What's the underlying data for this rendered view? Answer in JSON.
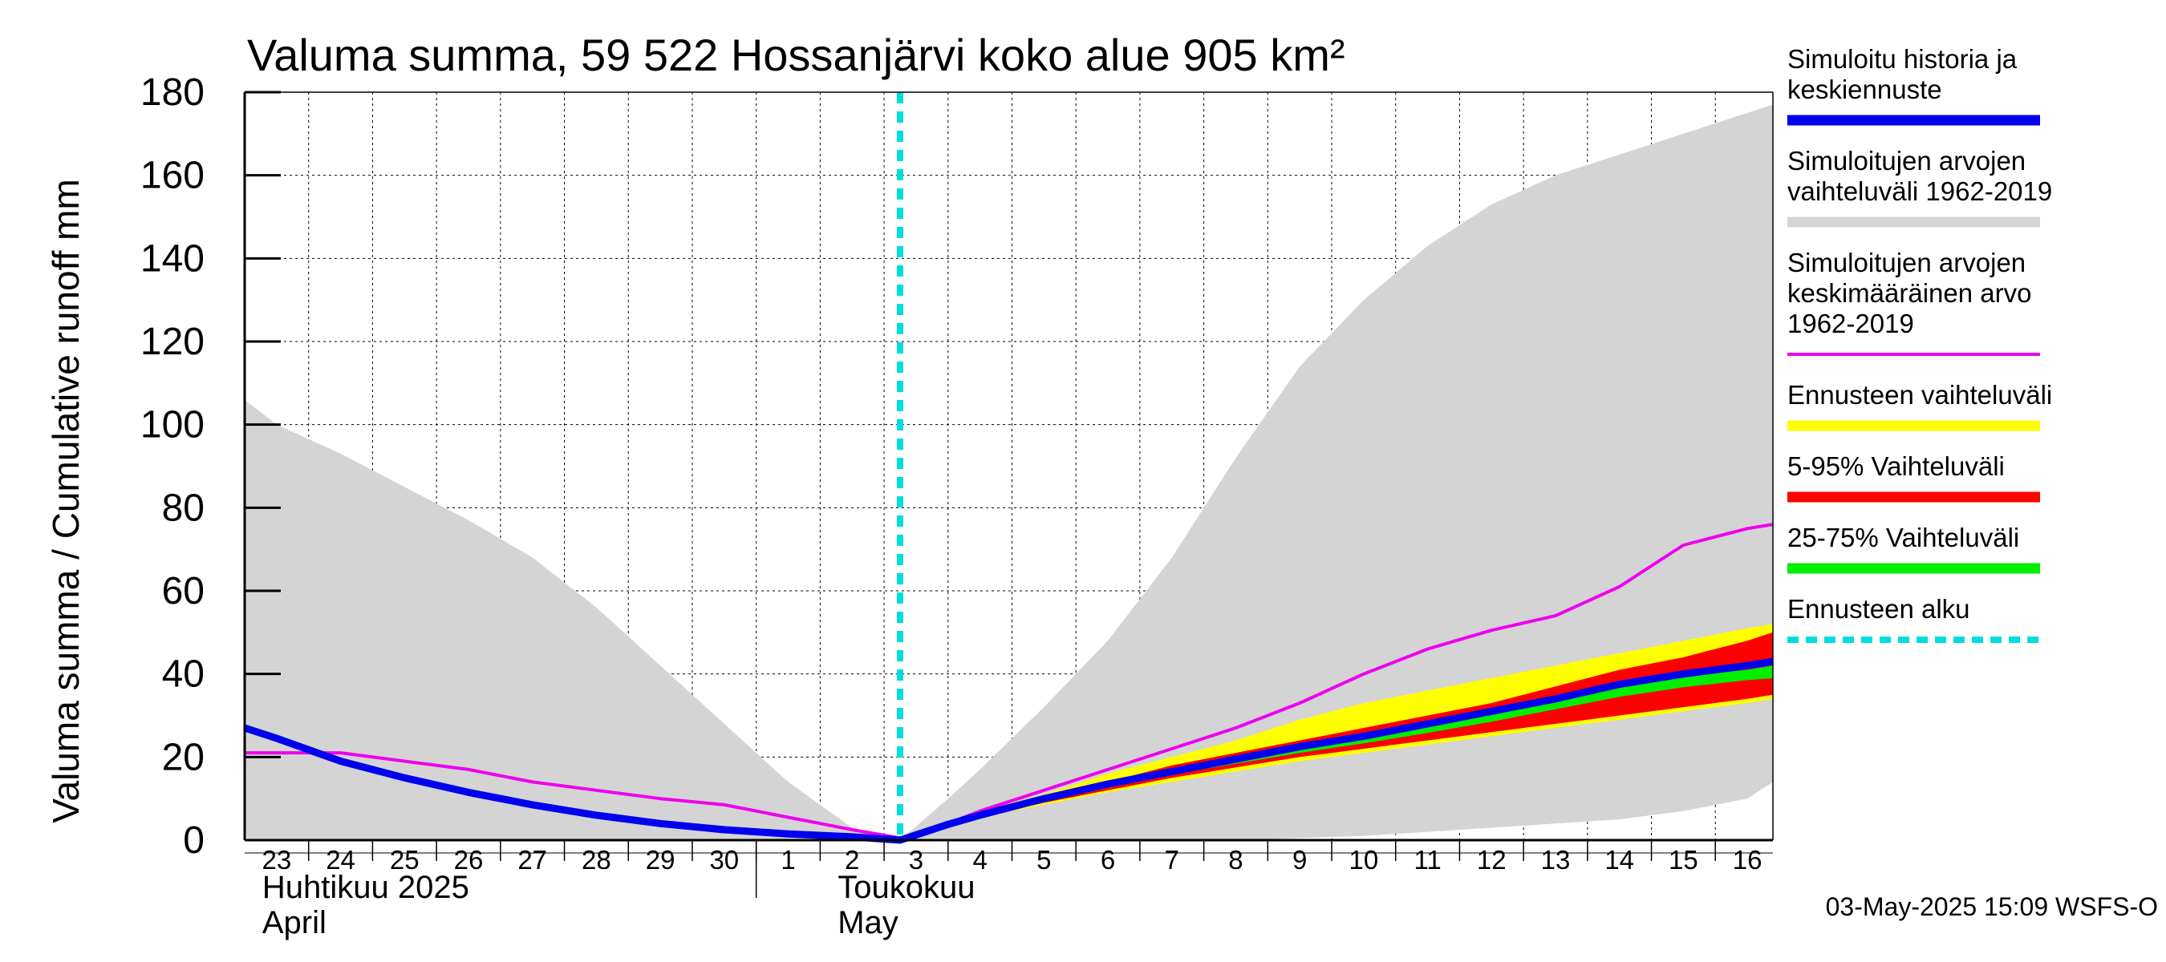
{
  "chart_data": {
    "type": "area",
    "title": "Valuma summa, 59 522 Hossanjärvi koko alue 905 km²",
    "ylabel": "Valuma summa / Cumulative runoff    mm",
    "ylim": [
      0,
      180
    ],
    "yticks": [
      0,
      20,
      40,
      60,
      80,
      100,
      120,
      140,
      160,
      180
    ],
    "xlim": [
      -0.5,
      23.4
    ],
    "x_tick_labels": [
      "23",
      "24",
      "25",
      "26",
      "27",
      "28",
      "29",
      "30",
      "1",
      "2",
      "3",
      "4",
      "5",
      "6",
      "7",
      "8",
      "9",
      "10",
      "11",
      "12",
      "13",
      "14",
      "15",
      "16"
    ],
    "month_labels": [
      {
        "x": 0,
        "line1": "Huhtikuu  2025",
        "line2": "April"
      },
      {
        "x": 9,
        "line1": "Toukokuu",
        "line2": "May"
      }
    ],
    "month_boundary_x": 7.5,
    "forecast_start_x": 9.75,
    "grid": true,
    "legend_position": "right",
    "series": [
      {
        "name": "Simuloitujen arvojen vaihteluväli 1962-2019",
        "kind": "band",
        "color": "#d4d4d4",
        "x": [
          -0.5,
          0,
          1,
          2,
          3,
          4,
          5,
          6,
          7,
          8,
          9,
          9.75,
          10.5,
          11,
          12,
          13,
          14,
          15,
          16,
          17,
          18,
          19,
          20,
          21,
          22,
          23,
          23.4
        ],
        "upper": [
          106,
          100,
          93,
          85,
          77,
          68,
          56,
          42,
          28,
          14,
          3,
          0,
          10,
          17,
          32,
          48,
          68,
          92,
          114,
          130,
          143,
          153,
          160,
          165,
          170,
          175,
          177
        ],
        "lower": [
          0,
          0,
          0,
          0,
          0,
          0,
          0,
          0,
          0,
          0,
          0,
          0,
          0,
          0,
          0,
          0,
          0,
          0,
          0.5,
          1,
          2,
          3,
          4,
          5,
          7,
          10,
          14
        ]
      },
      {
        "name": "Ennusteen vaihteluväli",
        "kind": "band",
        "color": "#ffff00",
        "x": [
          9.75,
          10.5,
          11,
          12,
          13,
          14,
          15,
          16,
          17,
          18,
          19,
          20,
          21,
          22,
          23,
          23.4
        ],
        "upper": [
          0,
          4,
          7,
          11,
          16,
          20,
          24,
          29,
          33,
          36,
          39,
          42,
          45,
          48,
          51,
          52
        ],
        "lower": [
          0,
          3.5,
          5.5,
          8.5,
          11.5,
          14,
          16.5,
          19,
          21,
          23,
          25,
          27,
          29,
          31,
          33,
          34
        ]
      },
      {
        "name": "5-95% Vaihteluväli",
        "kind": "band",
        "color": "#ff0000",
        "x": [
          9.75,
          10.5,
          11,
          12,
          13,
          14,
          15,
          16,
          17,
          18,
          19,
          20,
          21,
          22,
          23,
          23.4
        ],
        "upper": [
          0,
          3.8,
          6,
          10,
          14,
          18,
          21,
          24,
          27,
          30,
          33,
          37,
          41,
          44,
          48,
          50
        ],
        "lower": [
          0,
          3.6,
          5.6,
          9,
          12,
          15,
          17.5,
          20,
          22,
          24,
          26,
          28,
          30,
          32,
          34,
          35
        ]
      },
      {
        "name": "25-75% Vaihteluväli",
        "kind": "band",
        "color": "#00ee00",
        "x": [
          9.75,
          10.5,
          11,
          12,
          13,
          14,
          15,
          16,
          17,
          18,
          19,
          20,
          21,
          22,
          23,
          23.4
        ],
        "upper": [
          0,
          3.8,
          5.9,
          9.8,
          13.4,
          17,
          19.8,
          22.5,
          25,
          27.8,
          30.8,
          33.8,
          37,
          39.5,
          41,
          42
        ],
        "lower": [
          0,
          3.7,
          5.7,
          9.2,
          12.6,
          15.8,
          18.4,
          21,
          23.3,
          25.8,
          28.5,
          31.5,
          34.5,
          36.8,
          38.5,
          39
        ]
      },
      {
        "name": "Simuloitujen arvojen keskimääräinen arvo 1962-2019",
        "kind": "line",
        "color": "#ee00ee",
        "x": [
          -0.5,
          0,
          1,
          2,
          3,
          4,
          5,
          6,
          7,
          8,
          9,
          9.75,
          10.5,
          11,
          12,
          13,
          14,
          15,
          16,
          17,
          18,
          19,
          20,
          21,
          22,
          23,
          23.4
        ],
        "y": [
          21,
          21,
          21,
          19,
          17,
          14,
          12,
          10,
          8.5,
          5.5,
          2.5,
          0.5,
          4,
          7,
          12,
          17,
          22,
          27,
          33,
          40,
          46,
          50.5,
          54,
          61,
          71,
          75,
          76
        ]
      },
      {
        "name": "Simuloitu historia ja keskiennuste",
        "kind": "line",
        "color": "#0000ee",
        "x": [
          -0.5,
          0,
          1,
          2,
          3,
          4,
          5,
          6,
          7,
          8,
          9,
          9.75,
          10.5,
          11,
          12,
          13,
          14,
          15,
          16,
          17,
          18,
          19,
          20,
          21,
          22,
          23,
          23.4
        ],
        "y": [
          27,
          24.5,
          19,
          15,
          11.5,
          8.5,
          6,
          4,
          2.5,
          1.5,
          0.8,
          0,
          3.8,
          6,
          10,
          13.5,
          16.5,
          19.5,
          22.5,
          25,
          28,
          31,
          34,
          37.5,
          40,
          42,
          43
        ]
      },
      {
        "name": "Ennusteen alku",
        "kind": "vline",
        "color": "#00dddd",
        "x": 9.75
      }
    ],
    "legend": [
      {
        "lines": [
          "Simuloitu historia ja",
          "keskiennuste"
        ],
        "color": "#0000ee",
        "style": "solid"
      },
      {
        "lines": [
          "Simuloitujen arvojen",
          "vaihteluväli 1962-2019"
        ],
        "color": "#d4d4d4",
        "style": "solid"
      },
      {
        "lines": [
          "Simuloitujen arvojen",
          "keskimääräinen arvo",
          "   1962-2019"
        ],
        "color": "#ee00ee",
        "style": "thin"
      },
      {
        "lines": [
          "Ennusteen vaihteluväli"
        ],
        "color": "#ffff00",
        "style": "solid"
      },
      {
        "lines": [
          "5-95% Vaihteluväli"
        ],
        "color": "#ff0000",
        "style": "solid"
      },
      {
        "lines": [
          "25-75% Vaihteluväli"
        ],
        "color": "#00ee00",
        "style": "solid"
      },
      {
        "lines": [
          "Ennusteen alku"
        ],
        "color": "#00dddd",
        "style": "dashed"
      }
    ],
    "footer": "03-May-2025 15:09 WSFS-O"
  }
}
